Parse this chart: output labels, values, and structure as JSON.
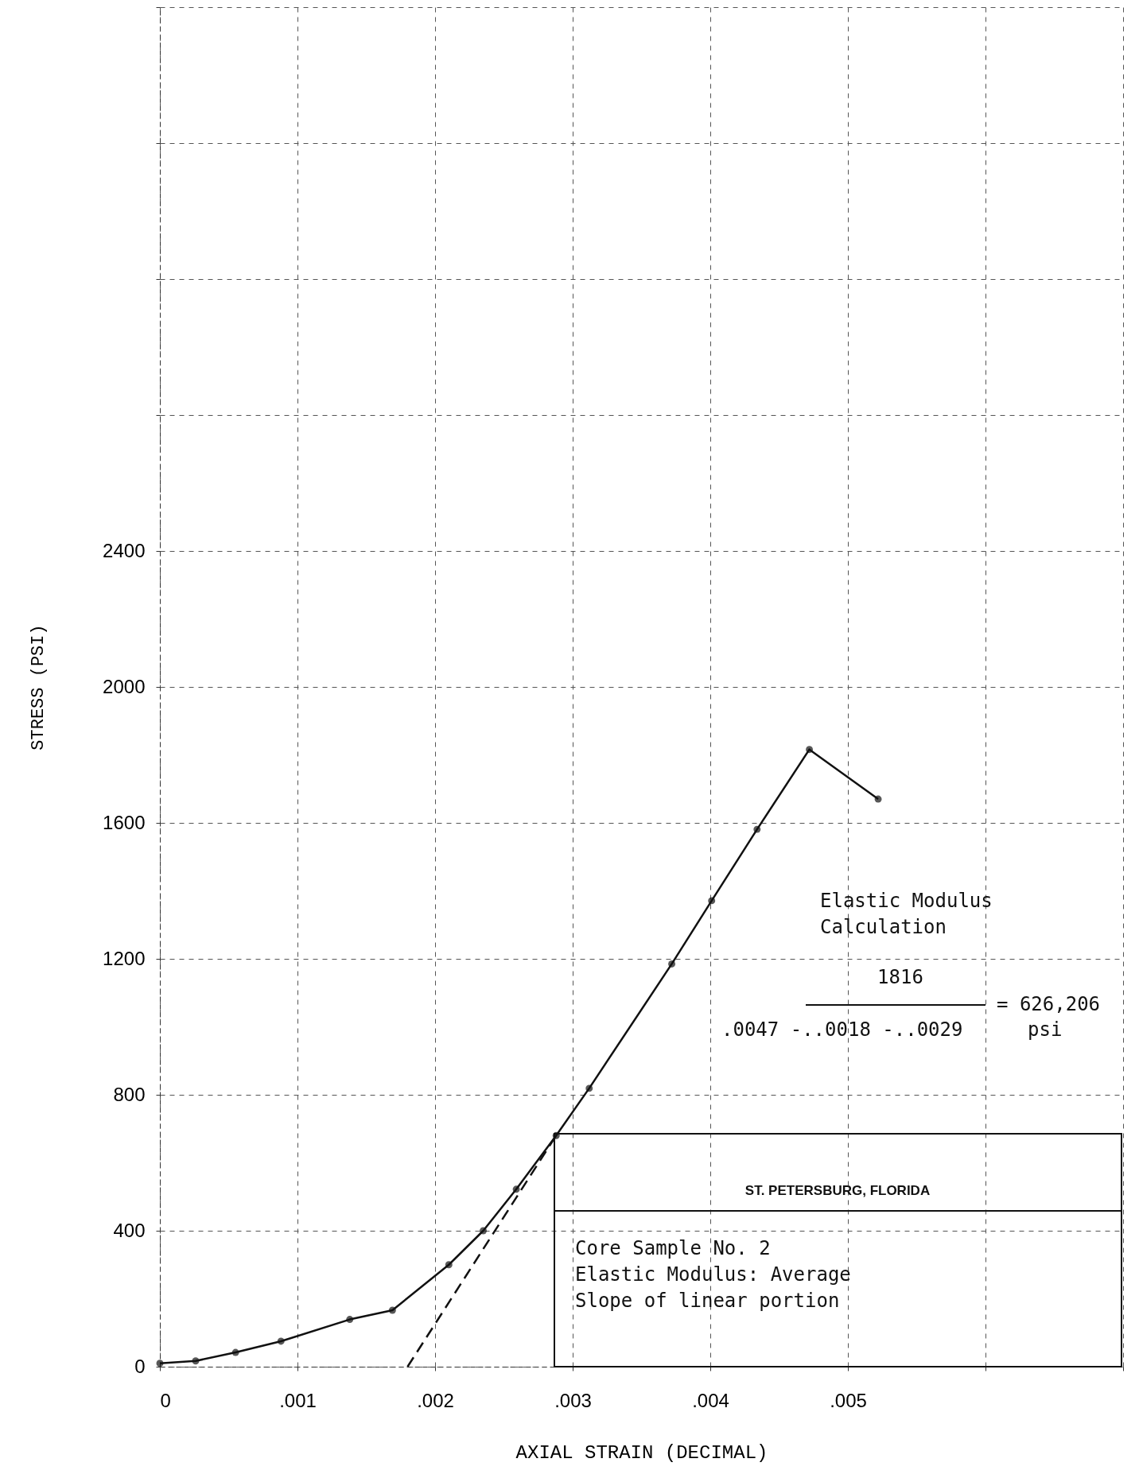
{
  "chart_data": {
    "type": "line",
    "xlabel": "AXIAL STRAIN (DECIMAL)",
    "ylabel": "STRESS (PSI)",
    "xlim": [
      0,
      0.007
    ],
    "xticks": [
      0,
      {
        "value": 0.001,
        "label": ".001"
      },
      {
        "value": 0.002,
        "label": ".002"
      },
      {
        "value": 0.003,
        "label": ".003"
      },
      {
        "value": 0.004,
        "label": ".004"
      },
      {
        "value": 0.005,
        "label": ".005"
      },
      {
        "value": 0.006,
        "label": null
      },
      {
        "value": 0.007,
        "label": null
      }
    ],
    "ylim": [
      0,
      4000
    ],
    "yticks": [
      0,
      400,
      800,
      1200,
      1600,
      2000,
      2400,
      {
        "value": 2800,
        "label": null
      },
      {
        "value": 3200,
        "label": null
      },
      {
        "value": 3600,
        "label": null
      },
      {
        "value": 4000,
        "label": null
      }
    ],
    "grid": true,
    "series": [
      {
        "color": "#111111",
        "marker": "circle",
        "x": [
          0,
          0.00026,
          0.00055,
          0.00088,
          0.00138,
          0.00169,
          0.0021,
          0.00235,
          0.00259,
          0.00288,
          0.00312,
          0.00372,
          0.00401,
          0.00434,
          0.00472,
          0.00522
        ],
        "values": [
          10,
          17,
          42,
          75,
          139,
          166,
          300,
          400,
          522,
          680,
          819,
          1185,
          1371,
          1581,
          1816,
          1670
        ]
      },
      {
        "color": "#111111",
        "line_style": "dashed",
        "x": [
          0.0018,
          0.00288
        ],
        "values": [
          0,
          680
        ]
      }
    ],
    "annotations": [
      "Elastic Modulus",
      "Calculation",
      "1816",
      "= 626,206",
      ".0047 -..0018 -..0029",
      "psi",
      "ST. PETERSBURG, FLORIDA",
      "Core Sample No. 2",
      "Elastic Modulus:  Average",
      "Slope of linear portion"
    ]
  }
}
